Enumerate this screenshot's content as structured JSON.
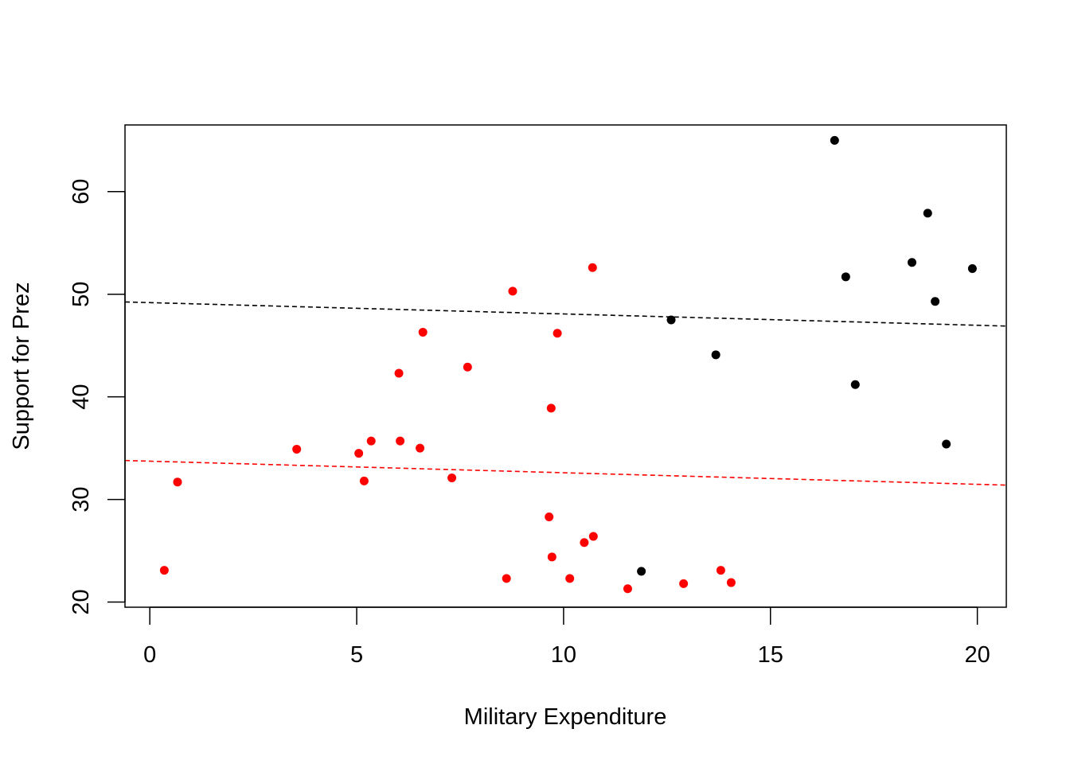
{
  "chart_data": {
    "type": "scatter",
    "title": "",
    "xlabel": "Military Expenditure",
    "ylabel": "Support for Prez",
    "xlim": [
      -0.6,
      20.7
    ],
    "ylim": [
      19.5,
      66.5
    ],
    "x_ticks": [
      0,
      5,
      10,
      15,
      20
    ],
    "y_ticks": [
      20,
      30,
      40,
      50,
      60
    ],
    "grid": false,
    "legend": "none",
    "series": [
      {
        "color": "#ff0000",
        "points": [
          {
            "x": 0.35,
            "y": 23.1
          },
          {
            "x": 0.67,
            "y": 31.7
          },
          {
            "x": 3.55,
            "y": 34.9
          },
          {
            "x": 5.05,
            "y": 34.5
          },
          {
            "x": 5.18,
            "y": 31.8
          },
          {
            "x": 5.35,
            "y": 35.7
          },
          {
            "x": 6.02,
            "y": 42.3
          },
          {
            "x": 6.05,
            "y": 35.7
          },
          {
            "x": 6.53,
            "y": 35.0
          },
          {
            "x": 6.6,
            "y": 46.3
          },
          {
            "x": 7.3,
            "y": 32.1
          },
          {
            "x": 7.68,
            "y": 42.9
          },
          {
            "x": 8.62,
            "y": 22.3
          },
          {
            "x": 8.77,
            "y": 50.3
          },
          {
            "x": 9.65,
            "y": 28.3
          },
          {
            "x": 9.7,
            "y": 38.9
          },
          {
            "x": 9.72,
            "y": 24.4
          },
          {
            "x": 9.85,
            "y": 46.2
          },
          {
            "x": 10.15,
            "y": 22.3
          },
          {
            "x": 10.5,
            "y": 25.8
          },
          {
            "x": 10.7,
            "y": 52.6
          },
          {
            "x": 10.72,
            "y": 26.4
          },
          {
            "x": 11.55,
            "y": 21.3
          },
          {
            "x": 12.9,
            "y": 21.8
          },
          {
            "x": 13.8,
            "y": 23.1
          },
          {
            "x": 14.05,
            "y": 21.9
          }
        ],
        "trend": {
          "x": [
            -0.6,
            20.7
          ],
          "y": [
            33.8,
            31.4
          ]
        }
      },
      {
        "color": "#000000",
        "points": [
          {
            "x": 11.88,
            "y": 23.0
          },
          {
            "x": 12.6,
            "y": 47.5
          },
          {
            "x": 13.68,
            "y": 44.1
          },
          {
            "x": 16.55,
            "y": 65.0
          },
          {
            "x": 16.82,
            "y": 51.7
          },
          {
            "x": 17.05,
            "y": 41.2
          },
          {
            "x": 18.42,
            "y": 53.1
          },
          {
            "x": 18.8,
            "y": 57.9
          },
          {
            "x": 18.98,
            "y": 49.3
          },
          {
            "x": 19.25,
            "y": 35.4
          },
          {
            "x": 19.88,
            "y": 52.5
          }
        ],
        "trend": {
          "x": [
            -0.6,
            20.7
          ],
          "y": [
            49.25,
            46.9
          ]
        }
      }
    ]
  }
}
